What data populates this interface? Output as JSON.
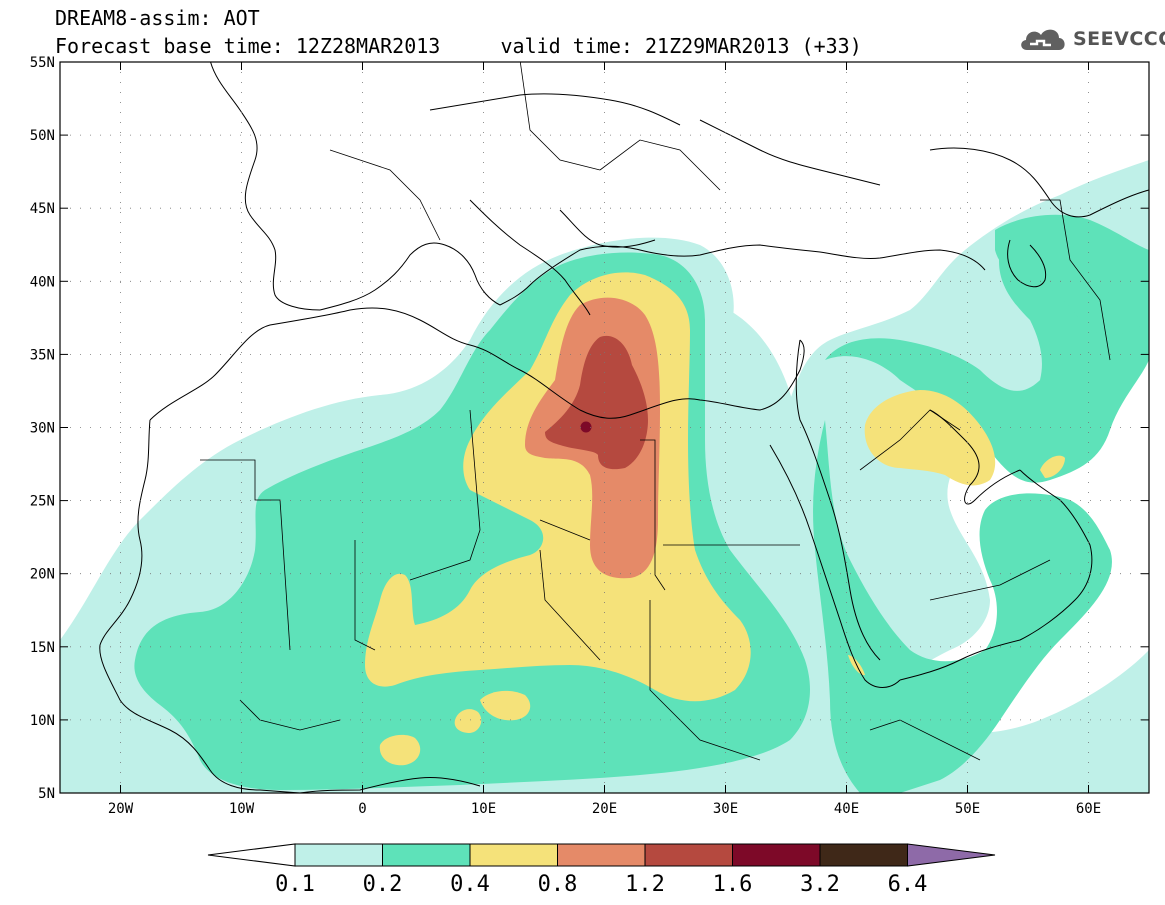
{
  "header": {
    "title": "DREAM8-assim: AOT",
    "subtitle": "Forecast base time: 12Z28MAR2013     valid time: 21Z29MAR2013 (+33)"
  },
  "logo": {
    "text": "SEEVCCC",
    "icon": "cloud-logo-icon"
  },
  "map": {
    "extent": {
      "lon": [
        -25,
        65
      ],
      "lat": [
        5,
        55
      ]
    },
    "lat_ticks": [
      {
        "value": 55,
        "label": "55N"
      },
      {
        "value": 50,
        "label": "50N"
      },
      {
        "value": 45,
        "label": "45N"
      },
      {
        "value": 40,
        "label": "40N"
      },
      {
        "value": 35,
        "label": "35N"
      },
      {
        "value": 30,
        "label": "30N"
      },
      {
        "value": 25,
        "label": "25N"
      },
      {
        "value": 20,
        "label": "20N"
      },
      {
        "value": 15,
        "label": "15N"
      },
      {
        "value": 10,
        "label": "10N"
      },
      {
        "value": 5,
        "label": "5N"
      }
    ],
    "lon_ticks": [
      {
        "value": -20,
        "label": "20W"
      },
      {
        "value": -10,
        "label": "10W"
      },
      {
        "value": 0,
        "label": "0"
      },
      {
        "value": 10,
        "label": "10E"
      },
      {
        "value": 20,
        "label": "20E"
      },
      {
        "value": 30,
        "label": "30E"
      },
      {
        "value": 40,
        "label": "40E"
      },
      {
        "value": 50,
        "label": "50E"
      },
      {
        "value": 60,
        "label": "60E"
      }
    ]
  },
  "colorbar": {
    "boundaries": [
      "0.1",
      "0.2",
      "0.4",
      "0.8",
      "1.2",
      "1.6",
      "3.2",
      "6.4"
    ],
    "low_color": "#ffffff",
    "high_color": "#8e6aa8",
    "colors": [
      "#bff0e8",
      "#5ee2b9",
      "#f5e27a",
      "#e58a68",
      "#b5493f",
      "#7d0928",
      "#3f2818"
    ]
  }
}
